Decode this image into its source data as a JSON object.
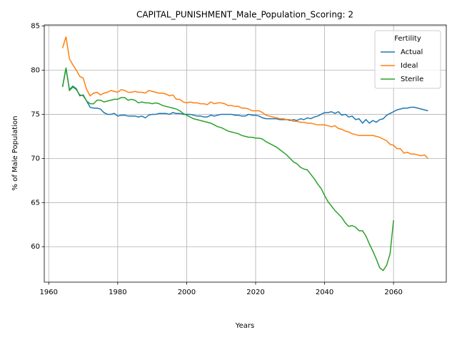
{
  "chart_data": {
    "type": "line",
    "title": "CAPITAL_PUNISHMENT_Male_Population_Scoring: 2",
    "xlabel": "Years",
    "ylabel": "% of Male Population",
    "legend_title": "Fertility",
    "legend": "upper right",
    "grid": true,
    "x": [
      1964,
      1965,
      1966,
      1967,
      1968,
      1969,
      1970,
      1971,
      1972,
      1973,
      1974,
      1975,
      1976,
      1977,
      1978,
      1979,
      1980,
      1981,
      1982,
      1983,
      1984,
      1985,
      1986,
      1987,
      1988,
      1989,
      1990,
      1991,
      1992,
      1993,
      1994,
      1995,
      1996,
      1997,
      1998,
      1999,
      2000,
      2001,
      2002,
      2003,
      2004,
      2005,
      2006,
      2007,
      2008,
      2009,
      2010,
      2011,
      2012,
      2013,
      2014,
      2015,
      2016,
      2017,
      2018,
      2019,
      2020,
      2021,
      2022,
      2023,
      2024,
      2025,
      2026,
      2027,
      2028,
      2029,
      2030,
      2031,
      2032,
      2033,
      2034,
      2035,
      2036,
      2037,
      2038,
      2039,
      2040,
      2041,
      2042,
      2043,
      2044,
      2045,
      2046,
      2047,
      2048,
      2049,
      2050,
      2051,
      2052,
      2053,
      2054,
      2055,
      2056,
      2057,
      2058,
      2059,
      2060,
      2061,
      2062,
      2063,
      2064,
      2065,
      2066,
      2067,
      2068,
      2069,
      2070
    ],
    "series": [
      {
        "name": "Actual",
        "color": "#1f77b4",
        "values": [
          78.1,
          80.2,
          77.8,
          78.2,
          77.9,
          77.1,
          77.2,
          76.5,
          75.8,
          75.7,
          75.7,
          75.6,
          75.2,
          75.0,
          75.0,
          75.1,
          74.8,
          74.9,
          74.9,
          74.8,
          74.8,
          74.8,
          74.7,
          74.8,
          74.6,
          74.9,
          75.0,
          75.0,
          75.1,
          75.1,
          75.1,
          75.0,
          75.2,
          75.1,
          75.1,
          75.0,
          75.0,
          75.0,
          74.9,
          74.8,
          74.8,
          74.7,
          74.7,
          74.9,
          74.8,
          74.9,
          75.0,
          75.0,
          75.0,
          75.0,
          74.9,
          74.9,
          74.8,
          74.8,
          75.0,
          74.9,
          74.9,
          74.8,
          74.6,
          74.5,
          74.5,
          74.5,
          74.5,
          74.4,
          74.4,
          74.4,
          74.3,
          74.4,
          74.3,
          74.5,
          74.4,
          74.6,
          74.5,
          74.7,
          74.8,
          75.0,
          75.2,
          75.2,
          75.3,
          75.1,
          75.3,
          74.9,
          75.0,
          74.7,
          74.8,
          74.4,
          74.5,
          74.0,
          74.4,
          74.0,
          74.3,
          74.1,
          74.4,
          74.5,
          74.9,
          75.1,
          75.3,
          75.5,
          75.6,
          75.7,
          75.7,
          75.8,
          75.8,
          75.7,
          75.6,
          75.5,
          75.4
        ]
      },
      {
        "name": "Ideal",
        "color": "#ff7f0e",
        "values": [
          82.5,
          83.8,
          81.3,
          80.6,
          80.0,
          79.3,
          79.1,
          77.8,
          77.1,
          77.4,
          77.5,
          77.2,
          77.4,
          77.5,
          77.7,
          77.6,
          77.5,
          77.8,
          77.7,
          77.5,
          77.5,
          77.6,
          77.5,
          77.5,
          77.4,
          77.7,
          77.6,
          77.5,
          77.4,
          77.4,
          77.3,
          77.1,
          77.2,
          76.7,
          76.7,
          76.4,
          76.3,
          76.4,
          76.3,
          76.3,
          76.2,
          76.2,
          76.1,
          76.4,
          76.2,
          76.3,
          76.3,
          76.2,
          76.0,
          76.0,
          75.9,
          75.9,
          75.7,
          75.7,
          75.6,
          75.4,
          75.4,
          75.4,
          75.2,
          74.9,
          74.8,
          74.7,
          74.6,
          74.5,
          74.5,
          74.4,
          74.4,
          74.2,
          74.2,
          74.1,
          74.1,
          74.0,
          74.0,
          73.9,
          73.8,
          73.8,
          73.8,
          73.7,
          73.6,
          73.7,
          73.4,
          73.3,
          73.1,
          73.0,
          72.8,
          72.7,
          72.6,
          72.6,
          72.6,
          72.6,
          72.6,
          72.5,
          72.4,
          72.2,
          72.0,
          71.6,
          71.5,
          71.1,
          71.1,
          70.6,
          70.7,
          70.5,
          70.5,
          70.4,
          70.3,
          70.4,
          70.0
        ]
      },
      {
        "name": "Sterile",
        "color": "#2ca02c",
        "values": [
          78.1,
          80.3,
          77.7,
          78.1,
          77.8,
          77.2,
          77.1,
          76.5,
          76.2,
          76.2,
          76.6,
          76.6,
          76.4,
          76.5,
          76.6,
          76.7,
          76.7,
          76.9,
          76.9,
          76.6,
          76.7,
          76.6,
          76.3,
          76.4,
          76.3,
          76.3,
          76.2,
          76.3,
          76.2,
          76.0,
          75.9,
          75.8,
          75.7,
          75.6,
          75.4,
          75.1,
          74.9,
          74.7,
          74.5,
          74.4,
          74.3,
          74.2,
          74.1,
          74.0,
          73.8,
          73.6,
          73.5,
          73.3,
          73.1,
          73.0,
          72.9,
          72.8,
          72.6,
          72.5,
          72.4,
          72.4,
          72.3,
          72.3,
          72.2,
          71.9,
          71.7,
          71.5,
          71.3,
          71.0,
          70.7,
          70.4,
          70.0,
          69.6,
          69.4,
          69.0,
          68.8,
          68.7,
          68.2,
          67.7,
          67.1,
          66.6,
          65.8,
          65.1,
          64.6,
          64.1,
          63.7,
          63.3,
          62.7,
          62.3,
          62.4,
          62.2,
          61.8,
          61.8,
          61.2,
          60.3,
          59.5,
          58.6,
          57.6,
          57.3,
          57.9,
          59.2,
          63.0,
          null,
          null,
          null,
          null,
          null,
          null,
          null,
          null,
          null,
          null
        ]
      }
    ],
    "xlim": [
      1958.7,
      2075.3
    ],
    "xticks": [
      1960,
      1980,
      2000,
      2020,
      2040,
      2060
    ],
    "ylim": [
      55.98,
      85.13
    ],
    "yticks": [
      60,
      65,
      70,
      75,
      80,
      85
    ]
  }
}
